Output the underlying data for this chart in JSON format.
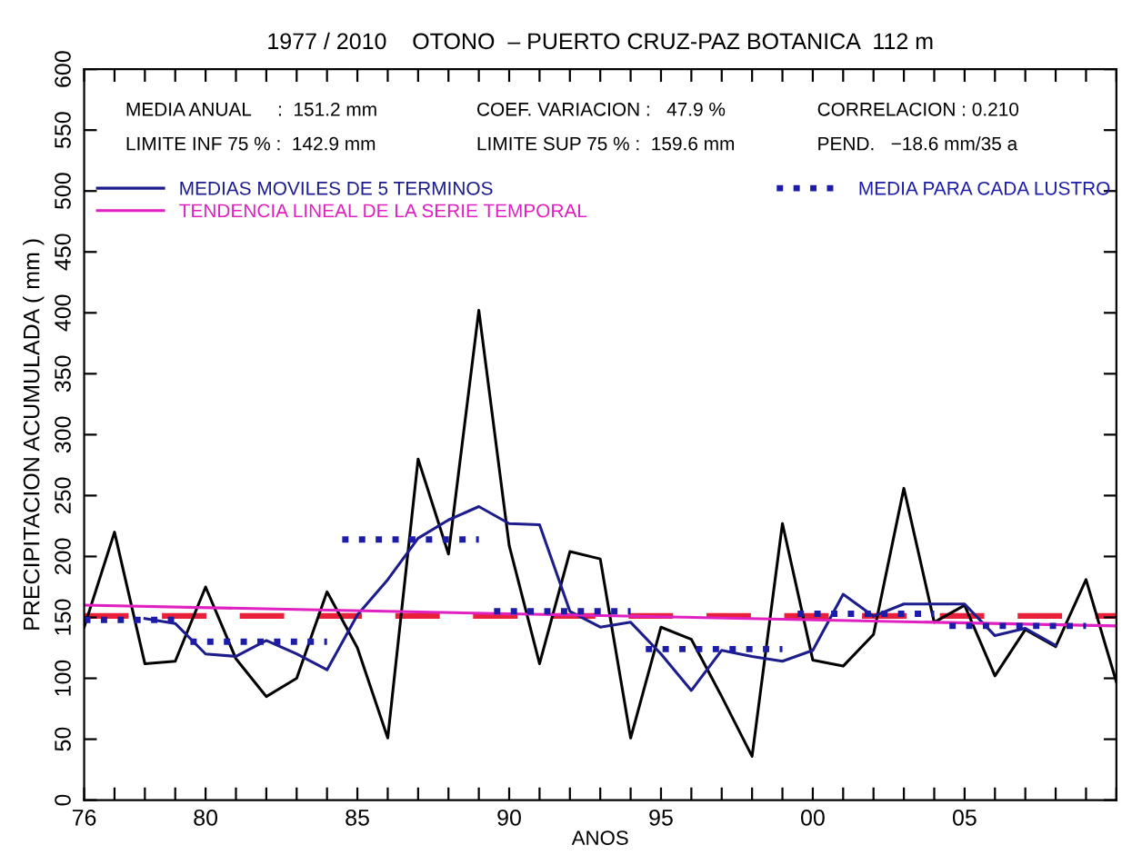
{
  "chart_data": {
    "type": "line",
    "title": "1977 / 2010    OTONO  – PUERTO CRUZ-PAZ BOTANICA  112 m",
    "xlabel": "ANOS",
    "ylabel": "PRECIPITACION ACUMULADA ( mm )",
    "annotations": [
      "MEDIA ANUAL     :  151.2 mm",
      "LIMITE INF 75 % :  142.9 mm",
      "COEF. VARIACION :   47.9 %",
      "LIMITE SUP 75 % :  159.6 mm",
      "CORRELACION : 0.210",
      "PEND.   −18.6 mm/35 a"
    ],
    "series": [
      {
        "color": "#000000",
        "x": [
          1976,
          1977,
          1978,
          1979,
          1980,
          1981,
          1982,
          1983,
          1984,
          1985,
          1986,
          1987,
          1988,
          1989,
          1990,
          1991,
          1992,
          1993,
          1994,
          1995,
          1996,
          1997,
          1998,
          1999,
          2000,
          2001,
          2002,
          2003,
          2004,
          2005,
          2006,
          2007,
          2008,
          2009,
          2010
        ],
        "values": [
          142,
          220,
          112,
          114,
          175,
          116,
          85,
          100,
          171,
          125,
          51,
          280,
          202,
          402,
          209,
          112,
          204,
          198,
          51,
          142,
          132,
          85,
          36,
          227,
          115,
          110,
          136,
          256,
          146,
          160,
          102,
          140,
          126,
          181,
          97
        ]
      },
      {
        "name": "MEDIAS MOVILES DE 5 TERMINOS",
        "color": "#1c1c8c",
        "x": [
          1978,
          1979,
          1980,
          1981,
          1982,
          1983,
          1984,
          1985,
          1986,
          1987,
          1988,
          1989,
          1990,
          1991,
          1992,
          1993,
          1994,
          1995,
          1996,
          1997,
          1998,
          1999,
          2000,
          2001,
          2002,
          2003,
          2004,
          2005,
          2006,
          2007,
          2008
        ],
        "values": [
          149,
          145,
          120,
          118,
          131,
          120,
          107,
          152,
          181,
          215,
          230,
          241,
          227,
          226,
          155,
          142,
          146,
          120,
          90,
          123,
          118,
          114,
          123,
          169,
          151,
          161,
          161,
          161,
          135,
          141,
          127
        ]
      },
      {
        "name": "TENDENCIA LINEAL DE LA SERIE TEMPORAL",
        "color": "#e020c0",
        "x": [
          1976,
          2010
        ],
        "values": [
          160,
          143
        ]
      },
      {
        "name": "MEDIA PARA CADA LUSTRO",
        "color": "#1c1ca8",
        "line_style": "dotted",
        "x": [
          1976,
          1979,
          1979.3,
          1979.5,
          1984,
          1984.3,
          1984.5,
          1989,
          1989.3,
          1989.5,
          1994,
          1994.3,
          1994.5,
          1999,
          1999.3,
          1999.5,
          2004,
          2004.3,
          2004.5,
          2009
        ],
        "values": [
          148,
          148,
          null,
          130,
          130,
          null,
          214,
          214,
          null,
          155,
          155,
          null,
          124,
          124,
          null,
          153,
          153,
          null,
          143,
          143
        ]
      }
    ],
    "ref_lines": [
      {
        "axis": "y",
        "value": 151.2,
        "color": "#e8203a",
        "line_style": "dashed"
      }
    ],
    "xlim": [
      1976,
      2010
    ],
    "ylim": [
      0,
      600
    ],
    "xticks": [
      {
        "value": 1976,
        "label": "76"
      },
      {
        "value": 1977,
        "label": null
      },
      {
        "value": 1978,
        "label": null
      },
      {
        "value": 1979,
        "label": null
      },
      {
        "value": 1980,
        "label": "80"
      },
      {
        "value": 1981,
        "label": null
      },
      {
        "value": 1982,
        "label": null
      },
      {
        "value": 1983,
        "label": null
      },
      {
        "value": 1984,
        "label": null
      },
      {
        "value": 1985,
        "label": "85"
      },
      {
        "value": 1986,
        "label": null
      },
      {
        "value": 1987,
        "label": null
      },
      {
        "value": 1988,
        "label": null
      },
      {
        "value": 1989,
        "label": null
      },
      {
        "value": 1990,
        "label": "90"
      },
      {
        "value": 1991,
        "label": null
      },
      {
        "value": 1992,
        "label": null
      },
      {
        "value": 1993,
        "label": null
      },
      {
        "value": 1994,
        "label": null
      },
      {
        "value": 1995,
        "label": "95"
      },
      {
        "value": 1996,
        "label": null
      },
      {
        "value": 1997,
        "label": null
      },
      {
        "value": 1998,
        "label": null
      },
      {
        "value": 1999,
        "label": null
      },
      {
        "value": 2000,
        "label": "00"
      },
      {
        "value": 2001,
        "label": null
      },
      {
        "value": 2002,
        "label": null
      },
      {
        "value": 2003,
        "label": null
      },
      {
        "value": 2004,
        "label": null
      },
      {
        "value": 2005,
        "label": "05"
      },
      {
        "value": 2006,
        "label": null
      },
      {
        "value": 2007,
        "label": null
      },
      {
        "value": 2008,
        "label": null
      },
      {
        "value": 2009,
        "label": null
      },
      {
        "value": 2010,
        "label": null
      }
    ],
    "yticks": [
      0,
      50,
      100,
      150,
      200,
      250,
      300,
      350,
      400,
      450,
      500,
      550,
      600
    ],
    "grid": false,
    "legend": "top left",
    "line_style": "solid",
    "marker": "none"
  }
}
